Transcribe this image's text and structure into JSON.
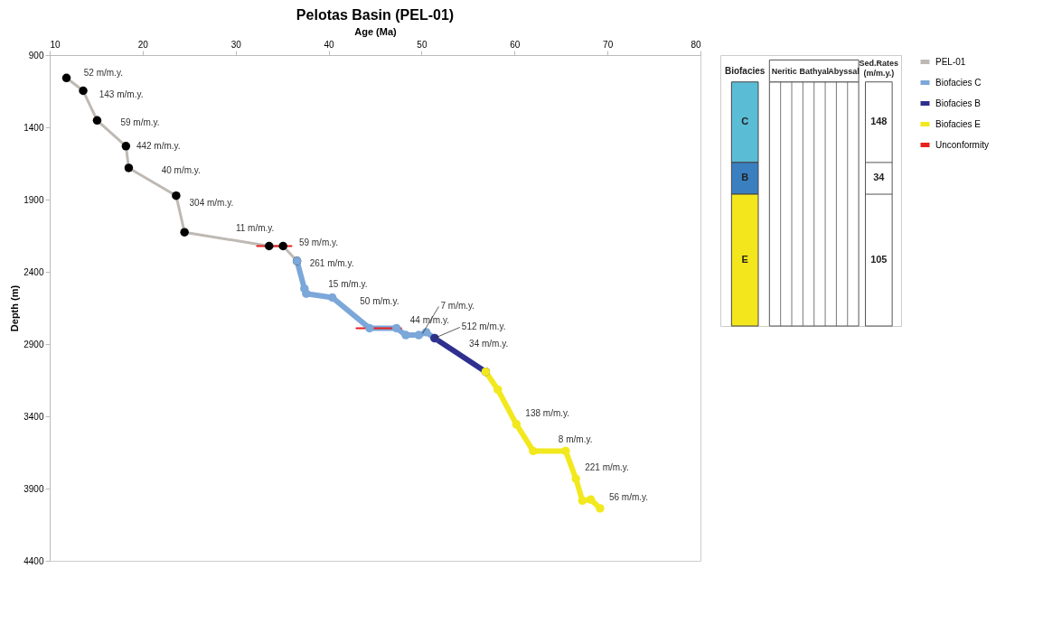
{
  "chart_data": [
    {
      "type": "line",
      "title": "Pelotas Basin (PEL-01)",
      "xlabel": "Age (Ma)",
      "ylabel": "Depth (m)",
      "xlim": [
        10,
        80
      ],
      "xticks": [
        10,
        20,
        30,
        40,
        50,
        60,
        70,
        80
      ],
      "ylim": [
        4400,
        900
      ],
      "yticks": [
        900,
        1400,
        1900,
        2400,
        2900,
        3400,
        3900,
        4400
      ],
      "grid": false,
      "legend": "right",
      "marker": "circle",
      "line_style": "solid",
      "series": [
        {
          "name": "PEL-01",
          "color": "#bfb9b4",
          "colors": [
            "#000000",
            "#000000",
            "#000000",
            "#000000",
            "#000000",
            "#000000",
            "#000000",
            "#000000",
            "#000000",
            "#000000"
          ],
          "x": [
            11.8,
            13.6,
            15.1,
            18.2,
            18.5,
            23.6,
            24.5,
            33.6,
            35.1,
            36.6
          ],
          "values": [
            1058,
            1147,
            1352,
            1530,
            1681,
            1873,
            2126,
            2222,
            2222,
            2325
          ]
        },
        {
          "name": "Biofacies C",
          "color": "#7ba7d9",
          "x": [
            36.6,
            37.4,
            37.6,
            40.4,
            44.4,
            47.3,
            48.3,
            49.7,
            50.5,
            51.4
          ],
          "values": [
            2325,
            2517,
            2551,
            2578,
            2790,
            2790,
            2838,
            2838,
            2818,
            2859
          ]
        },
        {
          "name": "Biofacies B",
          "color": "#2e2f8f",
          "x": [
            51.4,
            56.9
          ],
          "values": [
            2859,
            3092
          ]
        },
        {
          "name": "Biofacies E",
          "color": "#f2e81e",
          "x": [
            56.9,
            58.2,
            60.2,
            62.0,
            65.5,
            66.6,
            67.3,
            68.2,
            69.2
          ],
          "values": [
            3092,
            3215,
            3455,
            3640,
            3640,
            3832,
            3983,
            3976,
            4037
          ]
        },
        {
          "name": "Unconformity",
          "color": "#e8201f",
          "marker": "none",
          "x": [
            32.3,
            36.0
          ],
          "values": [
            2222,
            2222
          ]
        },
        {
          "color": "#e8201f",
          "marker": "none",
          "x": [
            43.0,
            47.8
          ],
          "values": [
            2790,
            2790
          ]
        }
      ],
      "annotations": [
        {
          "text": "52 m/m.y.",
          "x": 12.7,
          "y": 1102
        },
        {
          "text": "143 m/m.y.",
          "x": 14.35,
          "y": 1250
        },
        {
          "text": "59 m/m.y.",
          "x": 16.65,
          "y": 1441
        },
        {
          "text": "442 m/m.y.",
          "x": 18.35,
          "y": 1605
        },
        {
          "text": "40 m/m.y.",
          "x": 21.05,
          "y": 1777
        },
        {
          "text": "304 m/m.y.",
          "x": 24.05,
          "y": 2000
        },
        {
          "text": "11 m/m.y.",
          "x": 29.05,
          "y": 2174
        },
        {
          "text": "59 m/m.y.",
          "x": 35.85,
          "y": 2273
        },
        {
          "text": "261 m/m.y.",
          "x": 37,
          "y": 2421
        },
        {
          "text": "15 m/m.y.",
          "x": 39,
          "y": 2564
        },
        {
          "text": "50 m/m.y.",
          "x": 42.4,
          "y": 2684
        },
        {
          "text": "44 m/m.y.",
          "x": 47.8,
          "y": 2814
        },
        {
          "text": "7 m/m.y.",
          "x": 50.1,
          "y": 2828
        },
        {
          "text": "512 m/m.y.",
          "x": 51.4,
          "y": 2859
        },
        {
          "text": "34 m/m.y.",
          "x": 54.15,
          "y": 2975
        },
        {
          "text": "138 m/m.y.",
          "x": 60.2,
          "y": 3455
        },
        {
          "text": "8 m/m.y.",
          "x": 63.75,
          "y": 3640
        },
        {
          "text": "221 m/m.y.",
          "x": 66.6,
          "y": 3832
        },
        {
          "text": "56 m/m.y.",
          "x": 69.2,
          "y": 4037
        }
      ]
    },
    {
      "type": "other",
      "categories": [
        "C",
        "B",
        "E"
      ],
      "colors": [
        "#5bbcd6",
        "#3a7fc0",
        "#f4e61c"
      ],
      "values": [
        148,
        34,
        105
      ],
      "data_labels": true,
      "annotations": [
        "Biofacies",
        "Neritic",
        "Bathyal",
        "Abyssal",
        "Sed.Rates",
        "(m/m.y.)"
      ]
    }
  ]
}
